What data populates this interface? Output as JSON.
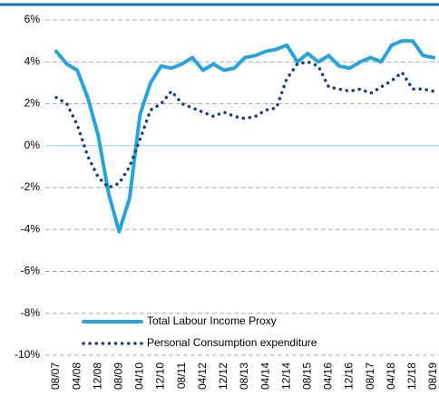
{
  "chart_data": {
    "type": "line",
    "categories": [
      "08/07",
      null,
      "04/08",
      null,
      "12/08",
      null,
      "08/09",
      null,
      "04/10",
      null,
      "12/10",
      null,
      "08/11",
      null,
      "04/12",
      null,
      "12/12",
      null,
      "08/13",
      null,
      "04/14",
      null,
      "12/14",
      null,
      "08/15",
      null,
      "04/16",
      null,
      "12/16",
      null,
      "08/17",
      null,
      "04/18",
      null,
      "12/18",
      null,
      "08/19"
    ],
    "series": [
      {
        "name": "Total Labour Income Proxy",
        "color": "#29a3dc",
        "style": "solid",
        "values": [
          4.5,
          3.9,
          3.6,
          2.3,
          0.5,
          -2.3,
          -4.1,
          -2.5,
          1.5,
          3.0,
          3.8,
          3.7,
          3.9,
          4.2,
          3.6,
          3.9,
          3.6,
          3.7,
          4.2,
          4.3,
          4.5,
          4.6,
          4.8,
          4.0,
          4.4,
          4.0,
          4.3,
          3.8,
          3.7,
          4.0,
          4.2,
          4.0,
          4.8,
          5.0,
          5.0,
          4.3,
          4.2
        ]
      },
      {
        "name": "Personal Consumption expenditure",
        "color": "#1f3d7a",
        "style": "dotted",
        "values": [
          2.3,
          2.0,
          1.0,
          -0.5,
          -1.5,
          -2.0,
          -1.8,
          -1.0,
          0.3,
          1.7,
          2.0,
          2.6,
          2.0,
          1.8,
          1.6,
          1.4,
          1.6,
          1.4,
          1.3,
          1.4,
          1.7,
          1.8,
          3.2,
          3.9,
          4.0,
          3.8,
          2.8,
          2.7,
          2.6,
          2.7,
          2.5,
          2.8,
          3.1,
          3.5,
          2.7,
          2.7,
          2.6
        ]
      }
    ],
    "ylim": [
      -10,
      6
    ],
    "yticks": [
      {
        "value": -10,
        "label": "-10%"
      },
      {
        "value": -8,
        "label": "-8%"
      },
      {
        "value": -6,
        "label": "-6%"
      },
      {
        "value": -4,
        "label": "-4%"
      },
      {
        "value": -2,
        "label": "-2%"
      },
      {
        "value": 0,
        "label": "0%"
      },
      {
        "value": 2,
        "label": "2%"
      },
      {
        "value": 4,
        "label": "4%"
      },
      {
        "value": 6,
        "label": "6%"
      }
    ],
    "grid": true,
    "legend": "lower left"
  }
}
